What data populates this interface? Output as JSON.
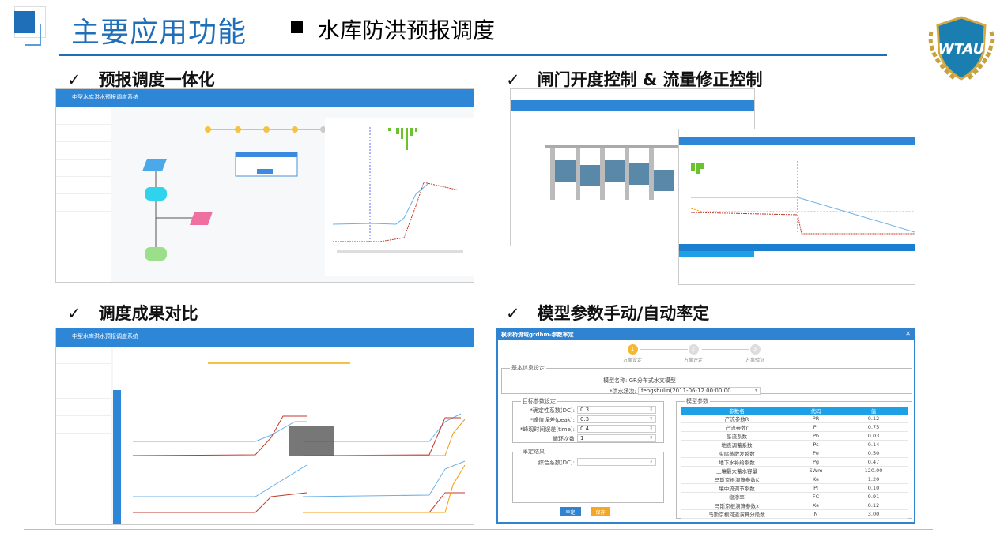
{
  "header": {
    "title": "主要应用功能",
    "subtitle": "水库防洪预报调度",
    "logo_text": "WTAU"
  },
  "sections": [
    {
      "check": "✓",
      "label": "预报调度一体化"
    },
    {
      "check": "✓",
      "label": "闸门开度控制 & 流量修正控制"
    },
    {
      "check": "✓",
      "label": "调度成果对比"
    },
    {
      "check": "✓",
      "label": "模型参数手动/自动率定"
    }
  ],
  "app": {
    "system_title": "中型水库洪水预报调度系统"
  },
  "calibration": {
    "window_title": "枫树桥流域grdhm-参数率定",
    "steps": [
      {
        "num": "1",
        "label": "方案设定"
      },
      {
        "num": "2",
        "label": "方案评定"
      },
      {
        "num": "3",
        "label": "方案验证"
      }
    ],
    "basic": {
      "legend": "基本信息设定",
      "model_name": "模型名称: GR分布式水文模型",
      "flood_label": "*洪水场次:",
      "flood_value": "fengshulin(2011-06-12 00:00:00"
    },
    "target": {
      "legend": "目标参数设定",
      "fields": [
        {
          "label": "*确定性系数(DC):",
          "value": "0.3"
        },
        {
          "label": "*峰值误差(peak):",
          "value": "0.3"
        },
        {
          "label": "*峰现时间误差(time):",
          "value": "0.4"
        },
        {
          "label": "循环次数",
          "value": "1"
        }
      ]
    },
    "result": {
      "legend": "率定结果",
      "label": "综合系数(DC):",
      "value": ""
    },
    "params": {
      "legend": "模型参数",
      "columns": [
        "参数名",
        "代码",
        "值"
      ],
      "rows": [
        [
          "产流参数R",
          "PR",
          "0.12"
        ],
        [
          "产流参数r",
          "Pr",
          "0.75"
        ],
        [
          "基流系数",
          "Pb",
          "0.03"
        ],
        [
          "地表调蓄系数",
          "Ps",
          "0.14"
        ],
        [
          "实际蒸散发系数",
          "Pe",
          "0.50"
        ],
        [
          "地下水补给系数",
          "Pg",
          "0.47"
        ],
        [
          "土壤最大蓄水容量",
          "SWm",
          "120.00"
        ],
        [
          "马斯京根演算参数K",
          "Ke",
          "1.20"
        ],
        [
          "壤中流调节系数",
          "PI",
          "0.10"
        ],
        [
          "稳渗率",
          "FC",
          "9.91"
        ],
        [
          "马斯京根演算参数x",
          "Xe",
          "0.12"
        ],
        [
          "马斯京根河道演算分段数",
          "N",
          "3.00"
        ]
      ]
    },
    "buttons": {
      "calibrate": "率定",
      "save": "保存"
    },
    "colors": {
      "primary": "#2f83d0",
      "accent": "#f5a623",
      "table_header": "#1ea0e6"
    }
  }
}
